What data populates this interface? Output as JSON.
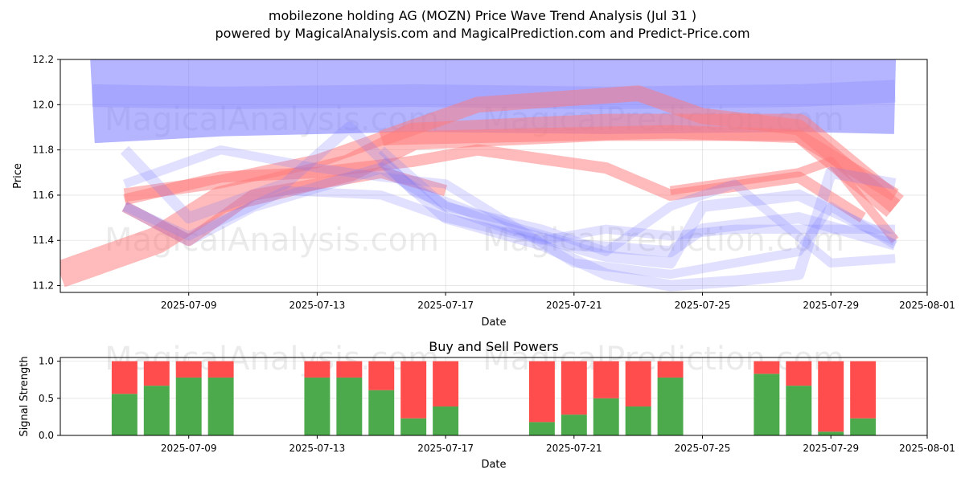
{
  "title": "mobilezone holding AG (MOZN) Price Wave Trend Analysis (Jul 31 )",
  "subtitle": "powered by MagicalAnalysis.com and MagicalPrediction.com and Predict-Price.com",
  "watermarks": [
    "MagicalAnalysis.com",
    "MagicalPrediction.com"
  ],
  "colors": {
    "blue_band": "#7777ff",
    "red_band": "#ff7777",
    "buy": "#4caa4c",
    "sell": "#ff4c4c"
  },
  "chart_data": [
    {
      "type": "line",
      "title": "",
      "xlabel": "Date",
      "ylabel": "Price",
      "ylim": [
        11.17,
        12.2
      ],
      "xlim": [
        "2025-07-05",
        "2025-08-01"
      ],
      "x_ticks": [
        "2025-07-09",
        "2025-07-13",
        "2025-07-17",
        "2025-07-21",
        "2025-07-25",
        "2025-07-29",
        "2025-08-01"
      ],
      "y_ticks": [
        "11.2",
        "11.4",
        "11.6",
        "11.8",
        "12.0",
        "12.2"
      ],
      "grid": true,
      "series": [
        {
          "color": "blue",
          "width": 0.38,
          "points": [
            [
              "2025-07-06",
              12.02
            ],
            [
              "2025-07-10",
              12.05
            ],
            [
              "2025-07-16",
              12.07
            ],
            [
              "2025-07-22",
              12.06
            ],
            [
              "2025-07-28",
              12.07
            ],
            [
              "2025-07-31",
              12.06
            ]
          ]
        },
        {
          "color": "blue",
          "width": 0.1,
          "points": [
            [
              "2025-07-06",
              12.04
            ],
            [
              "2025-07-10",
              12.03
            ],
            [
              "2025-07-16",
              12.04
            ],
            [
              "2025-07-22",
              12.03
            ],
            [
              "2025-07-28",
              12.04
            ],
            [
              "2025-07-31",
              12.06
            ]
          ]
        },
        {
          "color": "red",
          "width": 0.07,
          "points": [
            [
              "2025-07-15",
              11.85
            ],
            [
              "2025-07-18",
              12.0
            ],
            [
              "2025-07-23",
              12.05
            ],
            [
              "2025-07-24",
              12.0
            ],
            [
              "2025-07-25",
              11.95
            ],
            [
              "2025-07-28",
              11.9
            ],
            [
              "2025-07-31",
              11.55
            ]
          ]
        },
        {
          "color": "red",
          "width": 0.06,
          "points": [
            [
              "2025-07-07",
              11.6
            ],
            [
              "2025-07-10",
              11.66
            ],
            [
              "2025-07-13",
              11.75
            ],
            [
              "2025-07-15",
              11.85
            ],
            [
              "2025-07-24",
              11.88
            ],
            [
              "2025-07-28",
              11.86
            ],
            [
              "2025-07-31",
              11.6
            ]
          ]
        },
        {
          "color": "red",
          "width": 0.12,
          "points": [
            [
              "2025-07-05",
              11.25
            ],
            [
              "2025-07-08",
              11.4
            ],
            [
              "2025-07-10",
              11.58
            ],
            [
              "2025-07-14",
              11.72
            ],
            [
              "2025-07-16",
              11.86
            ],
            [
              "2025-07-22",
              11.9
            ],
            [
              "2025-07-28",
              11.9
            ],
            [
              "2025-07-31",
              11.55
            ]
          ]
        },
        {
          "color": "red",
          "width": 0.05,
          "points": [
            [
              "2025-07-07",
              11.58
            ],
            [
              "2025-07-10",
              11.68
            ],
            [
              "2025-07-13",
              11.7
            ],
            [
              "2025-07-16",
              11.75
            ],
            [
              "2025-07-18",
              11.8
            ],
            [
              "2025-07-22",
              11.72
            ],
            [
              "2025-07-24",
              11.6
            ],
            [
              "2025-07-28",
              11.68
            ],
            [
              "2025-07-30",
              11.5
            ]
          ]
        },
        {
          "color": "red",
          "width": 0.05,
          "points": [
            [
              "2025-07-07",
              11.55
            ],
            [
              "2025-07-09",
              11.4
            ],
            [
              "2025-07-11",
              11.6
            ],
            [
              "2025-07-15",
              11.7
            ],
            [
              "2025-07-17",
              11.62
            ]
          ]
        },
        {
          "color": "red",
          "width": 0.04,
          "points": [
            [
              "2025-07-24",
              11.62
            ],
            [
              "2025-07-28",
              11.7
            ],
            [
              "2025-07-29",
              11.75
            ],
            [
              "2025-07-31",
              11.4
            ]
          ]
        },
        {
          "color": "blue",
          "width": 0.05,
          "points": [
            [
              "2025-07-07",
              11.55
            ],
            [
              "2025-07-09",
              11.4
            ],
            [
              "2025-07-11",
              11.55
            ],
            [
              "2025-07-15",
              11.72
            ],
            [
              "2025-07-17",
              11.55
            ],
            [
              "2025-07-19",
              11.45
            ],
            [
              "2025-07-22",
              11.33
            ],
            [
              "2025-07-24",
              11.3
            ],
            [
              "2025-07-25",
              11.55
            ],
            [
              "2025-07-28",
              11.6
            ],
            [
              "2025-07-31",
              11.4
            ]
          ]
        },
        {
          "color": "blue",
          "width": 0.05,
          "points": [
            [
              "2025-07-07",
              11.8
            ],
            [
              "2025-07-09",
              11.5
            ],
            [
              "2025-07-12",
              11.65
            ],
            [
              "2025-07-14",
              11.9
            ],
            [
              "2025-07-16",
              11.62
            ],
            [
              "2025-07-19",
              11.46
            ],
            [
              "2025-07-21",
              11.38
            ],
            [
              "2025-07-24",
              11.35
            ],
            [
              "2025-07-25",
              11.45
            ],
            [
              "2025-07-28",
              11.5
            ],
            [
              "2025-07-31",
              11.38
            ]
          ]
        },
        {
          "color": "blue",
          "width": 0.04,
          "points": [
            [
              "2025-07-07",
              11.65
            ],
            [
              "2025-07-10",
              11.8
            ],
            [
              "2025-07-13",
              11.72
            ],
            [
              "2025-07-15",
              11.68
            ],
            [
              "2025-07-17",
              11.65
            ],
            [
              "2025-07-21",
              11.3
            ],
            [
              "2025-07-24",
              11.25
            ],
            [
              "2025-07-26",
              11.3
            ],
            [
              "2025-07-28",
              11.35
            ],
            [
              "2025-07-29",
              11.55
            ],
            [
              "2025-07-31",
              11.38
            ]
          ]
        },
        {
          "color": "blue",
          "width": 0.04,
          "points": [
            [
              "2025-07-07",
              11.55
            ],
            [
              "2025-07-09",
              11.42
            ],
            [
              "2025-07-12",
              11.62
            ],
            [
              "2025-07-15",
              11.6
            ],
            [
              "2025-07-17",
              11.5
            ],
            [
              "2025-07-20",
              11.4
            ],
            [
              "2025-07-22",
              11.45
            ],
            [
              "2025-07-24",
              11.42
            ],
            [
              "2025-07-26",
              11.45
            ],
            [
              "2025-07-29",
              11.45
            ],
            [
              "2025-07-31",
              11.45
            ]
          ]
        },
        {
          "color": "blue",
          "width": 0.05,
          "points": [
            [
              "2025-07-15",
              11.75
            ],
            [
              "2025-07-17",
              11.5
            ],
            [
              "2025-07-20",
              11.38
            ],
            [
              "2025-07-22",
              11.25
            ],
            [
              "2025-07-24",
              11.2
            ],
            [
              "2025-07-26",
              11.22
            ],
            [
              "2025-07-28",
              11.25
            ],
            [
              "2025-07-29",
              11.7
            ],
            [
              "2025-07-31",
              11.65
            ]
          ]
        },
        {
          "color": "blue",
          "width": 0.04,
          "points": [
            [
              "2025-07-15",
              11.8
            ],
            [
              "2025-07-17",
              11.55
            ],
            [
              "2025-07-20",
              11.45
            ],
            [
              "2025-07-22",
              11.35
            ],
            [
              "2025-07-24",
              11.55
            ],
            [
              "2025-07-26",
              11.65
            ],
            [
              "2025-07-29",
              11.3
            ],
            [
              "2025-07-31",
              11.32
            ]
          ]
        }
      ]
    },
    {
      "type": "bar",
      "title": "Buy and Sell Powers",
      "xlabel": "Date",
      "ylabel": "Signal Strength",
      "ylim": [
        0,
        1.05
      ],
      "y_ticks": [
        "0.0",
        "0.5",
        "1.0"
      ],
      "x_ticks": [
        "2025-07-09",
        "2025-07-13",
        "2025-07-17",
        "2025-07-21",
        "2025-07-25",
        "2025-07-29",
        "2025-08-01"
      ],
      "grid": true,
      "categories": [
        "2025-07-07",
        "2025-07-08",
        "2025-07-09",
        "2025-07-10",
        "2025-07-13",
        "2025-07-14",
        "2025-07-15",
        "2025-07-16",
        "2025-07-17",
        "2025-07-20",
        "2025-07-21",
        "2025-07-22",
        "2025-07-23",
        "2025-07-24",
        "2025-07-27",
        "2025-07-28",
        "2025-07-29",
        "2025-07-30"
      ],
      "buy": [
        0.56,
        0.67,
        0.78,
        0.78,
        0.78,
        0.78,
        0.61,
        0.23,
        0.39,
        0.18,
        0.28,
        0.5,
        0.39,
        0.78,
        0.83,
        0.67,
        0.05,
        0.23
      ],
      "sell": [
        0.44,
        0.33,
        0.22,
        0.22,
        0.22,
        0.22,
        0.39,
        0.77,
        0.61,
        0.82,
        0.72,
        0.5,
        0.61,
        0.22,
        0.17,
        0.33,
        0.95,
        0.77
      ]
    }
  ]
}
